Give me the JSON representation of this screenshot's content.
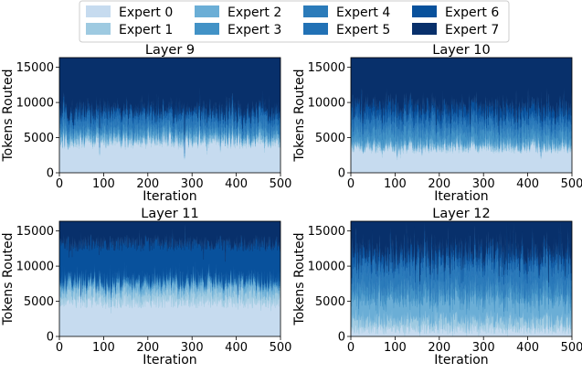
{
  "legend": {
    "entries": [
      "Expert 0",
      "Expert 1",
      "Expert 2",
      "Expert 3",
      "Expert 4",
      "Expert 5",
      "Expert 6",
      "Expert 7"
    ],
    "colors": [
      "#c6dbef",
      "#9ecae1",
      "#6baed6",
      "#4292c6",
      "#2b7bba",
      "#2171b5",
      "#08519c",
      "#08306b"
    ],
    "placement": "top-center",
    "columns": 4
  },
  "chart_data": [
    {
      "type": "area",
      "stacked": true,
      "title": "Layer 9",
      "xlabel": "Iteration",
      "ylabel": "Tokens Routed",
      "xlim": [
        0,
        500
      ],
      "ylim": [
        0,
        16384
      ],
      "xticks": [
        0,
        100,
        200,
        300,
        400,
        500
      ],
      "yticks": [
        0,
        5000,
        10000,
        15000
      ],
      "grid": false,
      "iterations": 500,
      "total_tokens": 16384,
      "series": [
        {
          "name": "Expert 0",
          "mean": 4500,
          "jitter": 1100
        },
        {
          "name": "Expert 1",
          "mean": 400,
          "jitter": 300
        },
        {
          "name": "Expert 2",
          "mean": 600,
          "jitter": 400
        },
        {
          "name": "Expert 3",
          "mean": 800,
          "jitter": 500
        },
        {
          "name": "Expert 4",
          "mean": 900,
          "jitter": 600
        },
        {
          "name": "Expert 5",
          "mean": 1200,
          "jitter": 700
        },
        {
          "name": "Expert 6",
          "mean": 700,
          "jitter": 400
        },
        {
          "name": "Expert 7",
          "mean": 7284,
          "jitter": 0
        }
      ]
    },
    {
      "type": "area",
      "stacked": true,
      "title": "Layer 10",
      "xlabel": "Iteration",
      "ylabel": "Tokens Routed",
      "xlim": [
        0,
        500
      ],
      "ylim": [
        0,
        16384
      ],
      "xticks": [
        0,
        100,
        200,
        300,
        400,
        500
      ],
      "yticks": [
        0,
        5000,
        10000,
        15000
      ],
      "grid": false,
      "iterations": 500,
      "total_tokens": 16384,
      "series": [
        {
          "name": "Expert 0",
          "mean": 3600,
          "jitter": 900
        },
        {
          "name": "Expert 1",
          "mean": 300,
          "jitter": 250
        },
        {
          "name": "Expert 2",
          "mean": 500,
          "jitter": 350
        },
        {
          "name": "Expert 3",
          "mean": 1500,
          "jitter": 800
        },
        {
          "name": "Expert 4",
          "mean": 1200,
          "jitter": 700
        },
        {
          "name": "Expert 5",
          "mean": 900,
          "jitter": 600
        },
        {
          "name": "Expert 6",
          "mean": 1500,
          "jitter": 700
        },
        {
          "name": "Expert 7",
          "mean": 6884,
          "jitter": 0
        }
      ]
    },
    {
      "type": "area",
      "stacked": true,
      "title": "Layer 11",
      "xlabel": "Iteration",
      "ylabel": "Tokens Routed",
      "xlim": [
        0,
        500
      ],
      "ylim": [
        0,
        16384
      ],
      "xticks": [
        0,
        100,
        200,
        300,
        400,
        500
      ],
      "yticks": [
        0,
        5000,
        10000,
        15000
      ],
      "grid": false,
      "iterations": 500,
      "total_tokens": 16384,
      "series": [
        {
          "name": "Expert 0",
          "mean": 5000,
          "jitter": 1000
        },
        {
          "name": "Expert 1",
          "mean": 1500,
          "jitter": 800
        },
        {
          "name": "Expert 2",
          "mean": 1100,
          "jitter": 600
        },
        {
          "name": "Expert 3",
          "mean": 300,
          "jitter": 200
        },
        {
          "name": "Expert 4",
          "mean": 200,
          "jitter": 150
        },
        {
          "name": "Expert 5",
          "mean": 300,
          "jitter": 200
        },
        {
          "name": "Expert 6",
          "mean": 4884,
          "jitter": 0
        },
        {
          "name": "Expert 7",
          "mean": 3100,
          "jitter": 1200
        }
      ]
    },
    {
      "type": "area",
      "stacked": true,
      "title": "Layer 12",
      "xlabel": "Iteration",
      "ylabel": "Tokens Routed",
      "xlim": [
        0,
        500
      ],
      "ylim": [
        0,
        16384
      ],
      "xticks": [
        0,
        100,
        200,
        300,
        400,
        500
      ],
      "yticks": [
        0,
        5000,
        10000,
        15000
      ],
      "grid": false,
      "iterations": 500,
      "total_tokens": 16384,
      "series": [
        {
          "name": "Expert 0",
          "mean": 1200,
          "jitter": 900
        },
        {
          "name": "Expert 1",
          "mean": 1300,
          "jitter": 900
        },
        {
          "name": "Expert 2",
          "mean": 2800,
          "jitter": 1000
        },
        {
          "name": "Expert 3",
          "mean": 1500,
          "jitter": 900
        },
        {
          "name": "Expert 4",
          "mean": 2500,
          "jitter": 1200
        },
        {
          "name": "Expert 5",
          "mean": 1600,
          "jitter": 900
        },
        {
          "name": "Expert 6",
          "mean": 1200,
          "jitter": 800
        },
        {
          "name": "Expert 7",
          "mean": 4284,
          "jitter": 0
        }
      ]
    }
  ]
}
